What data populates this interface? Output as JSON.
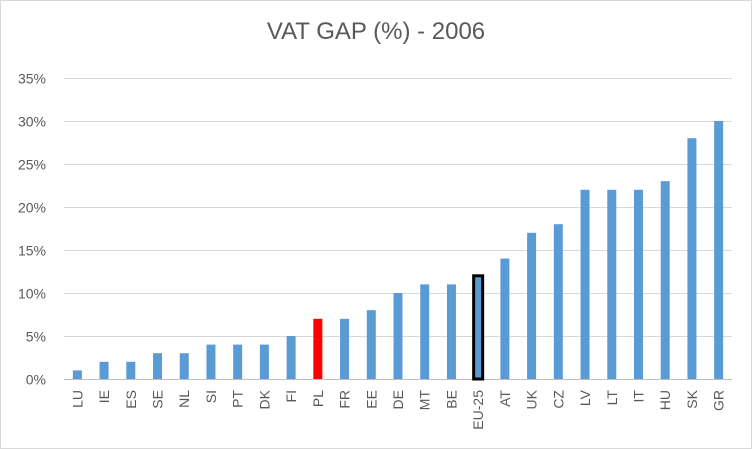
{
  "chart_data": {
    "type": "bar",
    "title": "VAT GAP (%) - 2006",
    "xlabel": "",
    "ylabel": "",
    "categories": [
      "LU",
      "IE",
      "ES",
      "SE",
      "NL",
      "SI",
      "PT",
      "DK",
      "FI",
      "PL",
      "FR",
      "EE",
      "DE",
      "MT",
      "BE",
      "EU-25",
      "AT",
      "UK",
      "CZ",
      "LV",
      "LT",
      "IT",
      "HU",
      "SK",
      "GR"
    ],
    "values": [
      1,
      2,
      2,
      3,
      3,
      4,
      4,
      4,
      5,
      7,
      7,
      8,
      10,
      11,
      11,
      12,
      14,
      17,
      18,
      22,
      22,
      22,
      23,
      28,
      30
    ],
    "ylim": [
      0,
      35
    ],
    "yticks": [
      0,
      5,
      10,
      15,
      20,
      25,
      30,
      35
    ],
    "ytick_labels": [
      "0%",
      "5%",
      "10%",
      "15%",
      "20%",
      "25%",
      "30%",
      "35%"
    ],
    "grid": true,
    "legend": "none",
    "colors": {
      "default_bar": "#5b9bd5",
      "highlight_pl": "#ff0000",
      "highlight_eu25_fill": "#5b9bd5",
      "highlight_eu25_outline": "#000000",
      "gridline": "#d9d9d9",
      "text": "#595959"
    }
  }
}
